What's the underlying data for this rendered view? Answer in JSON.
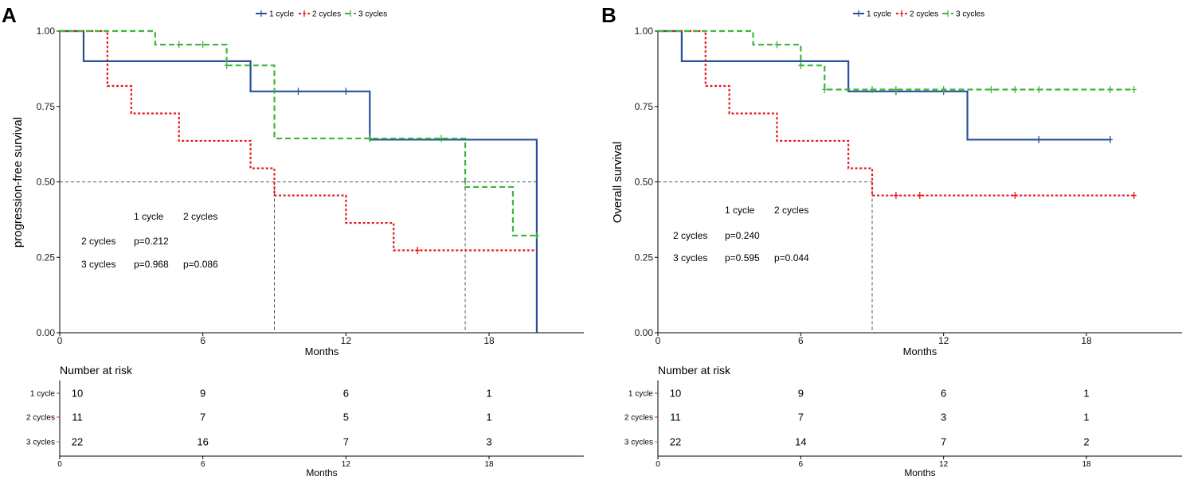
{
  "chart_data": [
    {
      "panel_label": "A",
      "type": "line",
      "title": "",
      "xlabel": "Months",
      "ylabel": "progression-free survival",
      "xlim": [
        0,
        22
      ],
      "ylim": [
        0,
        1
      ],
      "xticks": [
        0,
        6,
        12,
        18
      ],
      "xtick_labels": [
        "0",
        "6",
        "12",
        "18"
      ],
      "yticks": [
        0,
        0.25,
        0.5,
        0.75,
        1
      ],
      "ytick_labels": [
        "0.00",
        "0.25",
        "0.50",
        "0.75",
        "1.00"
      ],
      "grid": false,
      "legend_position": "top",
      "series": [
        {
          "name": "1 cycle",
          "color": "#27509b",
          "linestyle": "solid",
          "steps": [
            [
              0,
              1
            ],
            [
              1,
              0.9
            ],
            [
              8,
              0.8
            ],
            [
              13,
              0.64
            ],
            [
              20,
              0
            ]
          ],
          "end": 20,
          "censored": [
            [
              10,
              0.8
            ],
            [
              12,
              0.8
            ]
          ]
        },
        {
          "name": "2 cycles",
          "color": "#e8191c",
          "linestyle": "dotted",
          "steps": [
            [
              0,
              1
            ],
            [
              2,
              0.818
            ],
            [
              3,
              0.727
            ],
            [
              5,
              0.636
            ],
            [
              8,
              0.545
            ],
            [
              9,
              0.455
            ],
            [
              12,
              0.364
            ],
            [
              14,
              0.273
            ]
          ],
          "end": 20,
          "censored": [
            [
              15,
              0.273
            ]
          ]
        },
        {
          "name": "3 cycles",
          "color": "#3db53a",
          "linestyle": "dashed",
          "steps": [
            [
              0,
              1
            ],
            [
              4,
              0.955
            ],
            [
              7,
              0.886
            ],
            [
              9,
              0.644
            ],
            [
              17,
              0.483
            ],
            [
              19,
              0.322
            ]
          ],
          "end": 20,
          "censored": [
            [
              5,
              0.955
            ],
            [
              6,
              0.955
            ],
            [
              7,
              0.886
            ],
            [
              13,
              0.644
            ],
            [
              16,
              0.644
            ],
            [
              20,
              0.322
            ]
          ]
        }
      ],
      "median_survival": {
        "level": 0.5,
        "times": [
          9,
          17,
          20
        ]
      },
      "pairwise_pvalues": {
        "columns": [
          "1 cycle",
          "2 cycles"
        ],
        "rows": [
          {
            "label": "2 cycles",
            "values": [
              "p=0.212"
            ]
          },
          {
            "label": "3 cycles",
            "values": [
              "p=0.968",
              "p=0.086"
            ]
          }
        ]
      },
      "risk_table": {
        "title": "Number at risk",
        "xlabel": "Months",
        "times": [
          0,
          6,
          12,
          18
        ],
        "xtick_labels": [
          "0",
          "6",
          "12",
          "18"
        ],
        "rows": [
          {
            "label": "1 cycle",
            "counts": [
              10,
              9,
              6,
              1
            ]
          },
          {
            "label": "2 cycles",
            "counts": [
              11,
              7,
              5,
              1
            ]
          },
          {
            "label": "3 cycles",
            "counts": [
              22,
              16,
              7,
              3
            ]
          }
        ]
      }
    },
    {
      "panel_label": "B",
      "type": "line",
      "title": "",
      "xlabel": "Months",
      "ylabel": "Overall survival",
      "xlim": [
        0,
        22
      ],
      "ylim": [
        0,
        1
      ],
      "xticks": [
        0,
        6,
        12,
        18
      ],
      "xtick_labels": [
        "0",
        "6",
        "12",
        "18"
      ],
      "yticks": [
        0,
        0.25,
        0.5,
        0.75,
        1
      ],
      "ytick_labels": [
        "0.00",
        "0.25",
        "0.50",
        "0.75",
        "1.00"
      ],
      "grid": false,
      "legend_position": "top",
      "series": [
        {
          "name": "1 cycle",
          "color": "#27509b",
          "linestyle": "solid",
          "steps": [
            [
              0,
              1
            ],
            [
              1,
              0.9
            ],
            [
              8,
              0.8
            ],
            [
              13,
              0.64
            ]
          ],
          "end": 19,
          "censored": [
            [
              10,
              0.8
            ],
            [
              12,
              0.8
            ],
            [
              16,
              0.64
            ],
            [
              19,
              0.64
            ]
          ]
        },
        {
          "name": "2 cycles",
          "color": "#e8191c",
          "linestyle": "dotted",
          "steps": [
            [
              0,
              1
            ],
            [
              2,
              0.818
            ],
            [
              3,
              0.727
            ],
            [
              5,
              0.636
            ],
            [
              8,
              0.545
            ],
            [
              9,
              0.455
            ]
          ],
          "end": 20,
          "censored": [
            [
              10,
              0.455
            ],
            [
              11,
              0.455
            ],
            [
              15,
              0.455
            ],
            [
              20,
              0.455
            ]
          ]
        },
        {
          "name": "3 cycles",
          "color": "#3db53a",
          "linestyle": "dashed",
          "steps": [
            [
              0,
              1
            ],
            [
              4,
              0.955
            ],
            [
              6,
              0.886
            ],
            [
              7,
              0.806
            ]
          ],
          "end": 20,
          "censored": [
            [
              5,
              0.955
            ],
            [
              6,
              0.886
            ],
            [
              7,
              0.806
            ],
            [
              9,
              0.806
            ],
            [
              10,
              0.806
            ],
            [
              12,
              0.806
            ],
            [
              14,
              0.806
            ],
            [
              15,
              0.806
            ],
            [
              16,
              0.806
            ],
            [
              19,
              0.806
            ],
            [
              20,
              0.806
            ]
          ]
        }
      ],
      "median_survival": {
        "level": 0.5,
        "times": [
          9
        ]
      },
      "pairwise_pvalues": {
        "columns": [
          "1 cycle",
          "2 cycles"
        ],
        "rows": [
          {
            "label": "2 cycles",
            "values": [
              "p=0.240"
            ]
          },
          {
            "label": "3 cycles",
            "values": [
              "p=0.595",
              "p=0.044"
            ]
          }
        ]
      },
      "risk_table": {
        "title": "Number at risk",
        "xlabel": "Months",
        "times": [
          0,
          6,
          12,
          18
        ],
        "xtick_labels": [
          "0",
          "6",
          "12",
          "18"
        ],
        "rows": [
          {
            "label": "1 cycle",
            "counts": [
              10,
              9,
              6,
              1
            ]
          },
          {
            "label": "2 cycles",
            "counts": [
              11,
              7,
              3,
              1
            ]
          },
          {
            "label": "3 cycles",
            "counts": [
              22,
              14,
              7,
              2
            ]
          }
        ]
      }
    }
  ]
}
